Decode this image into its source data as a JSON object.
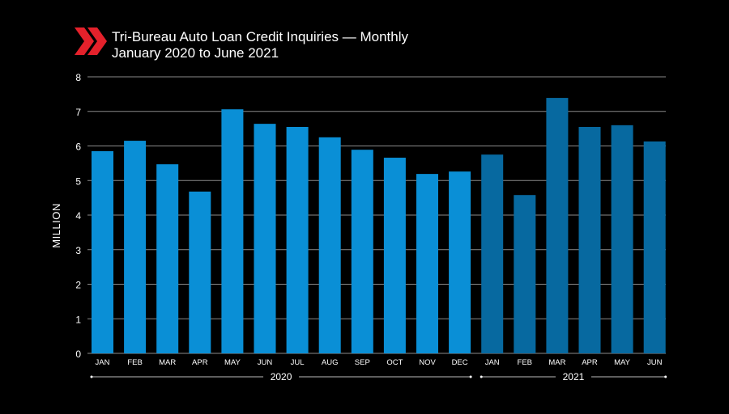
{
  "chart_data": {
    "type": "bar",
    "title": "Tri-Bureau Auto Loan Credit Inquiries — Monthly",
    "subtitle": "January 2020 to June 2021",
    "ylabel": "MILLION",
    "ylim": [
      0,
      8
    ],
    "yticks": [
      "0",
      "1",
      "2",
      "3",
      "4",
      "5",
      "6",
      "7",
      "8"
    ],
    "grid": true,
    "categories": [
      "JAN",
      "FEB",
      "MAR",
      "APR",
      "MAY",
      "JUN",
      "JUL",
      "AUG",
      "SEP",
      "OCT",
      "NOV",
      "DEC",
      "JAN",
      "FEB",
      "MAR",
      "APR",
      "MAY",
      "JUN"
    ],
    "groups": [
      {
        "label": "2020",
        "count": 12,
        "color": "#0a8fd6"
      },
      {
        "label": "2021",
        "count": 6,
        "color": "#0769a0"
      }
    ],
    "values": [
      5.85,
      6.15,
      5.47,
      4.68,
      7.06,
      6.64,
      6.55,
      6.25,
      5.89,
      5.66,
      5.19,
      5.26,
      5.75,
      4.58,
      7.39,
      6.55,
      6.6,
      6.13
    ]
  },
  "colors": {
    "background": "#000000",
    "logo": "#e4212b",
    "grid": "#8a8a8a",
    "text": "#ffffff"
  },
  "logo_icon": "double-chevron-right-icon"
}
